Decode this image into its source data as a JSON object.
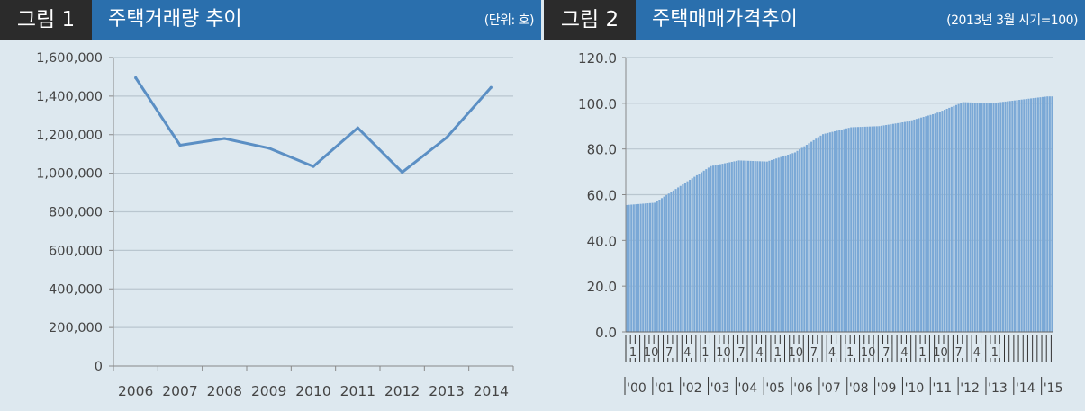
{
  "colors": {
    "header": "#2a6fad",
    "tag": "#2b2b2b",
    "line": "#5b8fc4",
    "bar": "#7aa8d6",
    "background": "#dde8ef",
    "grid": "#b9c6cf"
  },
  "chart_data": [
    {
      "type": "line",
      "tag": "그림 1",
      "title": "주택거래량 추이",
      "unit": "(단위: 호)",
      "x": [
        "2006",
        "2007",
        "2008",
        "2009",
        "2010",
        "2011",
        "2012",
        "2013",
        "2014"
      ],
      "series": [
        {
          "values": [
            1495000,
            1145000,
            1180000,
            1130000,
            1035000,
            1235000,
            1005000,
            1185000,
            1445000
          ]
        }
      ],
      "ylim": [
        0,
        1600000
      ],
      "yticks": [
        "0",
        "200,000",
        "400,000",
        "600,000",
        "800,000",
        "1,000,000",
        "1,200,000",
        "1,400,000",
        "1,600,000"
      ],
      "grid": true
    },
    {
      "type": "bar",
      "tag": "그림 2",
      "title": "주택매매가격추이",
      "unit": "(2013년 3월 시기=100)",
      "ylim": [
        0,
        120
      ],
      "yticks": [
        "0.0",
        "20.0",
        "40.0",
        "60.0",
        "80.0",
        "100.0",
        "120.0"
      ],
      "month_labels": [
        "1",
        "10",
        "7",
        "4",
        "1",
        "10",
        "7",
        "4",
        "1",
        "10",
        "7",
        "4",
        "1",
        "10",
        "7",
        "4",
        "1",
        "10",
        "7",
        "4",
        "1"
      ],
      "year_labels": [
        "'00",
        "'01",
        "'02",
        "'03",
        "'04",
        "'05",
        "'06",
        "'07",
        "'08",
        "'09",
        "'10",
        "'11",
        "'12",
        "'13",
        "'14",
        "'15"
      ],
      "year_anchor": [
        {
          "year": 2000,
          "value": 55.5
        },
        {
          "year": 2001,
          "value": 56.5
        },
        {
          "year": 2002,
          "value": 64.5
        },
        {
          "year": 2003,
          "value": 72.5
        },
        {
          "year": 2004,
          "value": 75.0
        },
        {
          "year": 2005,
          "value": 74.5
        },
        {
          "year": 2006,
          "value": 78.5
        },
        {
          "year": 2007,
          "value": 86.5
        },
        {
          "year": 2008,
          "value": 89.5
        },
        {
          "year": 2009,
          "value": 90.0
        },
        {
          "year": 2010,
          "value": 92.0
        },
        {
          "year": 2011,
          "value": 95.5
        },
        {
          "year": 2012,
          "value": 100.5
        },
        {
          "year": 2013,
          "value": 100.0
        },
        {
          "year": 2014,
          "value": 101.5
        },
        {
          "year": 2015,
          "value": 103.0
        }
      ]
    }
  ]
}
